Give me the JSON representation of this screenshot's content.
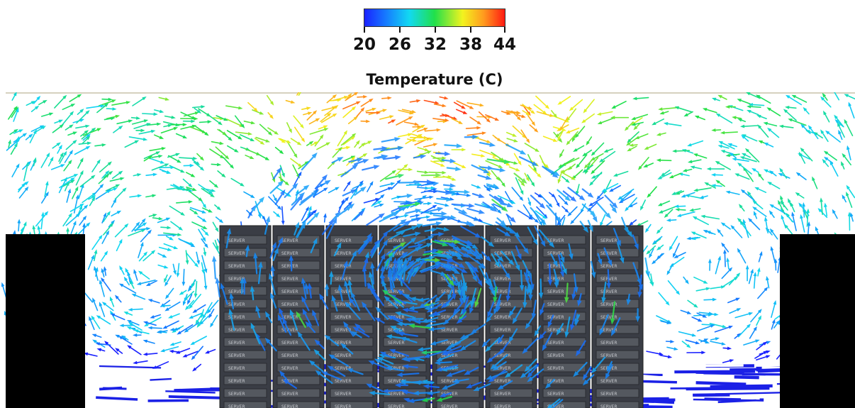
{
  "legend": {
    "title": "Temperature (C)",
    "tick_labels": [
      "20",
      "26",
      "32",
      "38",
      "44"
    ],
    "colors": [
      "#1a22ff",
      "#1679ff",
      "#12d9f2",
      "#21e04a",
      "#f3f31f",
      "#ff9a1e",
      "#ff1a12"
    ]
  },
  "scene": {
    "rack_label": "SERVER",
    "rack_color": "#3a3d45",
    "rack_count": 8,
    "cold_floor_color": "#1b21e6"
  }
}
